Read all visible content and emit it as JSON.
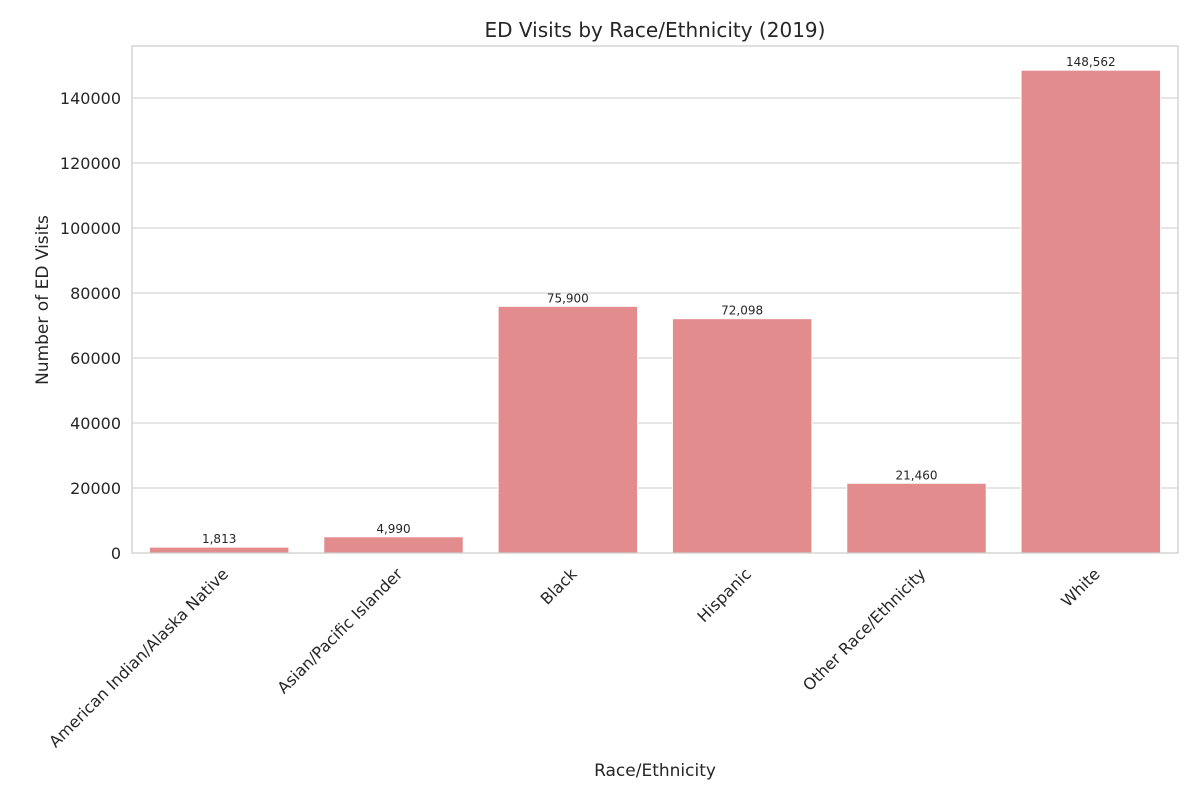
{
  "chart_data": {
    "type": "bar",
    "title": "ED Visits by Race/Ethnicity (2019)",
    "xlabel": "Race/Ethnicity",
    "ylabel": "Number of ED Visits",
    "categories": [
      "American Indian/Alaska Native",
      "Asian/Pacific Islander",
      "Black",
      "Hispanic",
      "Other Race/Ethnicity",
      "White"
    ],
    "values": [
      1813,
      4990,
      75900,
      72098,
      21460,
      148562
    ],
    "value_labels": [
      "1,813",
      "4,990",
      "75,900",
      "72,098",
      "21,460",
      "148,562"
    ],
    "ylim": [
      0,
      156000
    ],
    "yticks": [
      0,
      20000,
      40000,
      60000,
      80000,
      100000,
      120000,
      140000
    ],
    "ytick_labels": [
      "0",
      "20000",
      "40000",
      "60000",
      "80000",
      "100000",
      "120000",
      "140000"
    ],
    "grid": "y",
    "legend": "none",
    "bar_color": "#e28c8e"
  }
}
